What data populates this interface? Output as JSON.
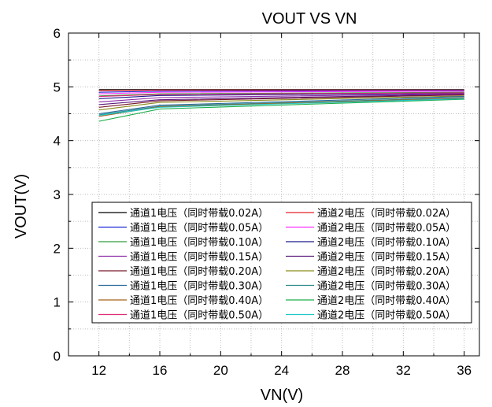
{
  "chart_data": {
    "type": "line",
    "title": "VOUT VS VN",
    "xlabel": "VN(V)",
    "ylabel": "VOUT(V)",
    "xlim": [
      10,
      37
    ],
    "ylim": [
      0,
      6
    ],
    "xticks": [
      12,
      16,
      20,
      24,
      28,
      32,
      36
    ],
    "yticks": [
      0,
      1,
      2,
      3,
      4,
      5,
      6
    ],
    "x": [
      12,
      16,
      36
    ],
    "grid": true,
    "legend_position": "bottom-center",
    "series": [
      {
        "name": "通道1电压（同时带载0.02A）",
        "color": "#000000",
        "values": [
          4.95,
          4.95,
          4.95
        ]
      },
      {
        "name": "通道2电压（同时带载0.02A）",
        "color": "#e8202a",
        "values": [
          4.93,
          4.94,
          4.94
        ]
      },
      {
        "name": "通道1电压（同时带载0.05A）",
        "color": "#1d2bd6",
        "values": [
          4.9,
          4.92,
          4.93
        ]
      },
      {
        "name": "通道2电压（同时带载0.05A）",
        "color": "#ff33ff",
        "values": [
          4.87,
          4.9,
          4.92
        ]
      },
      {
        "name": "通道1电压（同时带载0.10A）",
        "color": "#2e9e3a",
        "values": [
          4.83,
          4.87,
          4.9
        ]
      },
      {
        "name": "通道2电压（同时带载0.10A）",
        "color": "#1a1a8a",
        "values": [
          4.78,
          4.84,
          4.88
        ]
      },
      {
        "name": "通道1电压（同时带载0.15A）",
        "color": "#8b2aa8",
        "values": [
          4.72,
          4.8,
          4.87
        ]
      },
      {
        "name": "通道2电压（同时带载0.15A）",
        "color": "#5a1a7a",
        "values": [
          4.67,
          4.76,
          4.86
        ]
      },
      {
        "name": "通道1电压（同时带载0.20A）",
        "color": "#7a1a2a",
        "values": [
          4.62,
          4.74,
          4.85
        ]
      },
      {
        "name": "通道2电压（同时带载0.20A）",
        "color": "#8a8a1a",
        "values": [
          4.57,
          4.71,
          4.83
        ]
      },
      {
        "name": "通道1电压（同时带载0.30A）",
        "color": "#2a6a9a",
        "values": [
          4.5,
          4.66,
          4.82
        ]
      },
      {
        "name": "通道2电压（同时带载0.30A）",
        "color": "#2a8a8a",
        "values": [
          4.48,
          4.64,
          4.8
        ]
      },
      {
        "name": "通道1电压（同时带载0.40A）",
        "color": "#a8601a",
        "values": [
          4.45,
          4.63,
          4.79
        ]
      },
      {
        "name": "通道2电压（同时带载0.40A）",
        "color": "#1fae4a",
        "values": [
          4.36,
          4.59,
          4.77
        ]
      },
      {
        "name": "通道1电压（同时带载0.50A）",
        "color": "#e02a7a",
        "values": [
          4.82,
          4.86,
          4.89
        ]
      },
      {
        "name": "通道2电压（同时带载0.50A）",
        "color": "#20c8c8",
        "values": [
          4.47,
          4.62,
          4.78
        ]
      }
    ]
  }
}
